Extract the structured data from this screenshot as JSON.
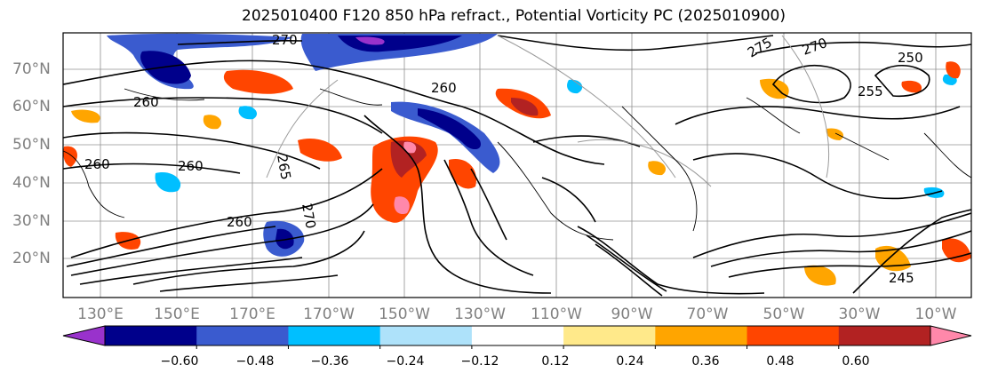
{
  "title": "2025010400 F120 850 hPa refract., Potential Vorticity PC (2025010900)",
  "map": {
    "lat_labels": [
      "70°N",
      "60°N",
      "50°N",
      "40°N",
      "30°N",
      "20°N"
    ],
    "lon_labels": [
      "130°E",
      "150°E",
      "170°E",
      "170°W",
      "150°W",
      "130°W",
      "110°W",
      "90°W",
      "70°W",
      "50°W",
      "30°W",
      "10°W"
    ],
    "contour_labels": [
      "270",
      "275",
      "270",
      "260",
      "260",
      "260",
      "265",
      "260",
      "260",
      "270",
      "250",
      "255",
      "245"
    ]
  },
  "colorbar": {
    "colors": [
      "#9932cc",
      "#00008b",
      "#3a5bcf",
      "#00bfff",
      "#aee2fa",
      "#ffffff",
      "#ffe98a",
      "#ffa500",
      "#ff4500",
      "#b22222",
      "#ff88aa"
    ],
    "tick_labels": [
      "−0.60",
      "−0.48",
      "−0.36",
      "−0.24",
      "−0.12",
      "0.12",
      "0.24",
      "0.36",
      "0.48",
      "0.60"
    ]
  }
}
